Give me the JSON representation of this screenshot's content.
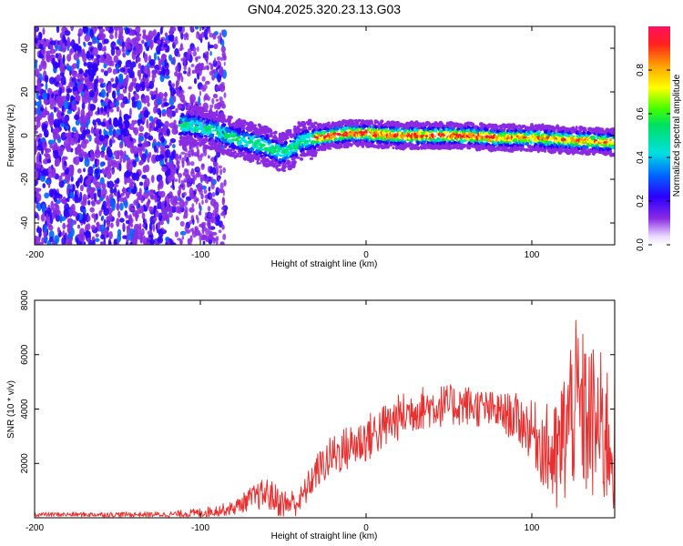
{
  "title": "GN04.2025.320.23.13.G03",
  "chart_data": [
    {
      "type": "heatmap",
      "xlabel": "Height of straight line (km)",
      "ylabel": "Frequency (Hz)",
      "xlim": [
        -200,
        150
      ],
      "ylim": [
        -50,
        50
      ],
      "xticks": [
        -200,
        -100,
        0,
        100
      ],
      "yticks": [
        -40,
        -20,
        0,
        20,
        40
      ],
      "ridge_center_hz": [
        [
          -110,
          5
        ],
        [
          -100,
          4
        ],
        [
          -90,
          2
        ],
        [
          -80,
          -1
        ],
        [
          -70,
          -3
        ],
        [
          -60,
          -5
        ],
        [
          -50,
          -8
        ],
        [
          -45,
          -6
        ],
        [
          -40,
          -3
        ],
        [
          -30,
          -1
        ],
        [
          -20,
          0
        ],
        [
          -10,
          1
        ],
        [
          0,
          1
        ],
        [
          20,
          0
        ],
        [
          40,
          0
        ],
        [
          60,
          0
        ],
        [
          80,
          -1
        ],
        [
          100,
          -1
        ],
        [
          120,
          -2
        ],
        [
          150,
          -3
        ]
      ],
      "colorbar": {
        "label": "Normalized spectral amplitude",
        "range": [
          0,
          1
        ],
        "ticks": [
          0.0,
          0.2,
          0.4,
          0.6,
          0.8
        ]
      }
    },
    {
      "type": "line",
      "xlabel": "Height of straight line (km)",
      "ylabel": "SNR (10 * v/v)",
      "xlim": [
        -200,
        150
      ],
      "ylim": [
        0,
        8000
      ],
      "xticks": [
        -200,
        -100,
        0,
        100
      ],
      "yticks": [
        2000,
        4000,
        6000,
        8000
      ],
      "series_color": "#e83030",
      "envelope_mean": [
        [
          -200,
          120
        ],
        [
          -120,
          120
        ],
        [
          -100,
          180
        ],
        [
          -80,
          350
        ],
        [
          -70,
          700
        ],
        [
          -60,
          900
        ],
        [
          -50,
          500
        ],
        [
          -40,
          600
        ],
        [
          -30,
          1700
        ],
        [
          -20,
          2300
        ],
        [
          -10,
          2600
        ],
        [
          0,
          2900
        ],
        [
          10,
          3300
        ],
        [
          20,
          3700
        ],
        [
          30,
          4000
        ],
        [
          40,
          4100
        ],
        [
          60,
          4150
        ],
        [
          80,
          3900
        ],
        [
          90,
          3700
        ],
        [
          100,
          3200
        ],
        [
          110,
          2400
        ],
        [
          115,
          2000
        ],
        [
          125,
          4200
        ],
        [
          135,
          3500
        ],
        [
          150,
          2800
        ]
      ],
      "envelope_spread": [
        [
          -200,
          80
        ],
        [
          -120,
          100
        ],
        [
          -80,
          250
        ],
        [
          -60,
          600
        ],
        [
          -40,
          500
        ],
        [
          -20,
          800
        ],
        [
          0,
          900
        ],
        [
          40,
          800
        ],
        [
          80,
          700
        ],
        [
          100,
          1100
        ],
        [
          110,
          1800
        ],
        [
          125,
          3200
        ],
        [
          150,
          2800
        ]
      ]
    }
  ]
}
